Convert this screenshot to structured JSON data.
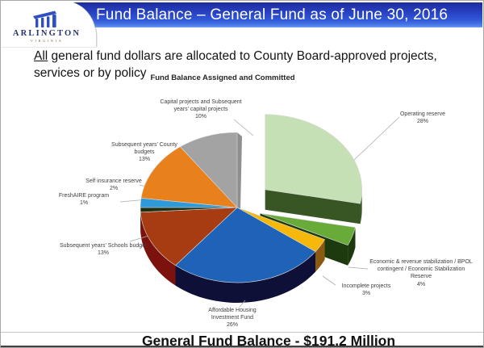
{
  "header": {
    "title": "Fund Balance – General Fund as of June 30, 2016",
    "logo": {
      "name": "ARLINGTON",
      "sub": "VIRGINIA"
    }
  },
  "intro": {
    "underlined": "All",
    "rest": " general fund dollars are allocated to County Board-approved projects, services or by policy"
  },
  "chart_data": {
    "type": "pie",
    "style": "3d-exploded",
    "title": "Fund Balance Assigned and Committed",
    "total": "$191.2 Million",
    "unit": "%",
    "slices": [
      {
        "id": "operating-reserve",
        "label": "Operating reserve",
        "pct": 28,
        "pct_label": "28%",
        "color": "#c5e0b4",
        "side": "#375623"
      },
      {
        "id": "economic-stabilization",
        "label": "Economic & revenue stabilization / BPOL contingent / Economic Stabilization Reserve",
        "pct": 4,
        "pct_label": "4%",
        "color": "#68ab38",
        "side": "#1c3a0e"
      },
      {
        "id": "incomplete-projects",
        "label": "Incomplete projects",
        "pct": 3,
        "pct_label": "3%",
        "color": "#f7b80c",
        "side": "#8a5a10"
      },
      {
        "id": "affordable-housing",
        "label": "Affordable Housing Investment Fund",
        "pct": 26,
        "pct_label": "26%",
        "color": "#1e63b8",
        "side": "#0e1038"
      },
      {
        "id": "schools-budget",
        "label": "Subsequent years' Schools budget",
        "pct": 13,
        "pct_label": "13%",
        "color": "#a73b11",
        "side": "#7c120e"
      },
      {
        "id": "freshaire-program",
        "label": "FreshAIRE program",
        "pct": 1,
        "pct_label": "1%",
        "color": "#1f2e10",
        "side": "#10180a"
      },
      {
        "id": "self-insurance",
        "label": "Self insurance reserve",
        "pct": 2,
        "pct_label": "2%",
        "color": "#2e9ad8",
        "side": "#1a6ea0"
      },
      {
        "id": "county-budgets",
        "label": "Subsequent years' County budgets",
        "pct": 13,
        "pct_label": "13%",
        "color": "#e8811c",
        "side": "#a35510"
      },
      {
        "id": "capital-projects",
        "label": "Capital projects and Subsequent years' capital projects",
        "pct": 10,
        "pct_label": "10%",
        "color": "#a3a3a3",
        "side": "#8f8f8f"
      }
    ]
  },
  "footer": {
    "text": "General Fund Balance - $191.2 Million"
  }
}
